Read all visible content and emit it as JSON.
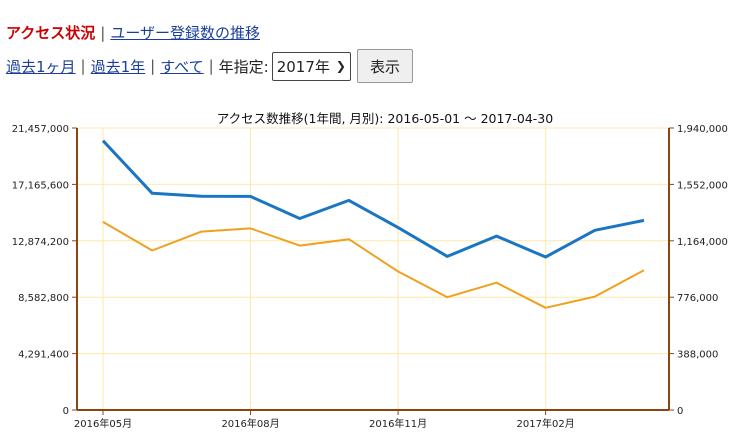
{
  "tabs": {
    "active": "アクセス状況",
    "link": "ユーザー登録数の推移",
    "separator": "|"
  },
  "filters": {
    "past_month": "過去1ヶ月",
    "past_year": "過去1年",
    "all": "すべて",
    "year_label": "年指定:",
    "year_selected": "2017年",
    "show_button": "表示",
    "separator": "|"
  },
  "colors": {
    "series_a": "#1a75c2",
    "series_b": "#f0a020",
    "axis": "#8b4513",
    "grid": "#fde9a8"
  },
  "chart_data": {
    "type": "line",
    "title": "アクセス数推移(1年間, 月別): 2016-05-01 〜 2017-04-30",
    "x": [
      "2016-05",
      "2016-06",
      "2016-07",
      "2016-08",
      "2016-09",
      "2016-10",
      "2016-11",
      "2016-12",
      "2017-01",
      "2017-02",
      "2017-03",
      "2017-04"
    ],
    "x_tick_labels": [
      {
        "index": 0,
        "label": "2016年05月"
      },
      {
        "index": 3,
        "label": "2016年08月"
      },
      {
        "index": 6,
        "label": "2016年11月"
      },
      {
        "index": 9,
        "label": "2017年02月"
      }
    ],
    "y_left_ticks": [
      "0",
      "4,291,400",
      "8,582,800",
      "12,874,200",
      "17,165,600",
      "21,457,000"
    ],
    "y_left_range": [
      0,
      21457000
    ],
    "y_right_ticks": [
      "0",
      "388,000",
      "776,000",
      "1,164,000",
      "1,552,000",
      "1,940,000"
    ],
    "y_right_range": [
      0,
      1940000
    ],
    "grid": true,
    "series": [
      {
        "axis": "left",
        "values": [
          20490000,
          16490000,
          16270000,
          16250000,
          14570000,
          15950000,
          13880000,
          11690000,
          13230000,
          11640000,
          13670000,
          14430000
        ]
      },
      {
        "axis": "right",
        "values": [
          1294000,
          1097000,
          1227000,
          1249000,
          1131000,
          1175000,
          953000,
          776000,
          876000,
          703000,
          780000,
          962000
        ]
      }
    ]
  }
}
